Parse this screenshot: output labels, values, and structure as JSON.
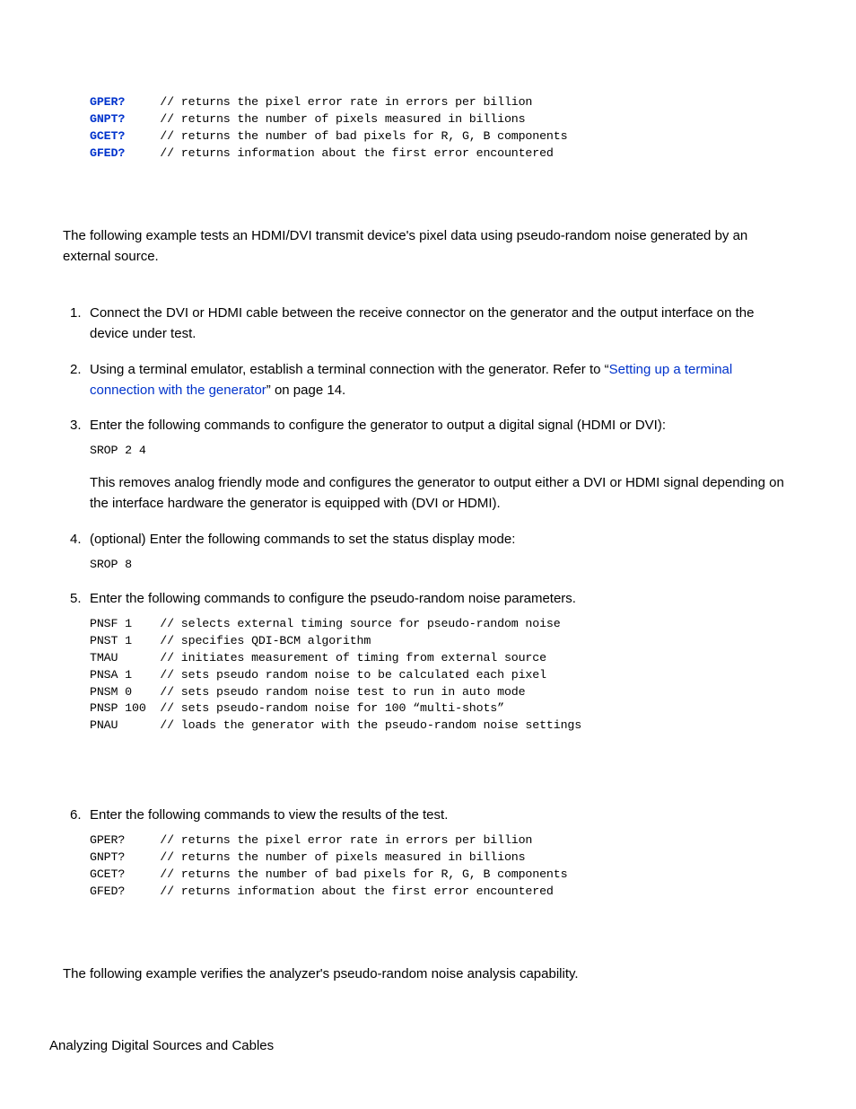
{
  "code_block_1": {
    "lines": [
      {
        "cmd": "GPER?",
        "arg": "",
        "pad": "     ",
        "comment": "// returns the pixel error rate in errors per billion"
      },
      {
        "cmd": "GNPT?",
        "arg": "",
        "pad": "     ",
        "comment": "// returns the number of pixels measured in billions"
      },
      {
        "cmd": "GCET?",
        "arg": "",
        "pad": "     ",
        "comment": "// returns the number of bad pixels for R, G, B components"
      },
      {
        "cmd": "GFED?",
        "arg": "",
        "pad": "     ",
        "comment": "// returns information about the first error encountered"
      }
    ]
  },
  "para_1": "The following example tests an HDMI/DVI transmit device's pixel data using pseudo-random noise generated by an external source.",
  "list_items": {
    "1": {
      "text": "Connect the DVI or HDMI cable between the receive connector on the generator and the output interface on the device under test."
    },
    "2": {
      "text_before": "Using a terminal emulator, establish a terminal connection with the generator. Refer to “",
      "link": "Setting up a terminal connection with the generator",
      "text_after": "” on page 14."
    },
    "3": {
      "text": "Enter the following commands to configure the generator to output a digital signal (HDMI or DVI):",
      "code": {
        "cmd": "SROP",
        "arg": " 2 4"
      },
      "after_text": "This removes analog friendly mode and configures the generator to output either a DVI or HDMI signal depending on the interface hardware the generator is equipped with (DVI or HDMI)."
    },
    "4": {
      "text": "(optional) Enter the following commands to set the status display mode:",
      "code_plain": "SROP 8"
    },
    "5": {
      "text": "Enter the following commands to configure the pseudo-random noise parameters.",
      "code_lines": [
        {
          "cmd": "PNSF",
          "arg": " 1",
          "pad": "    ",
          "comment": "// selects external timing source for pseudo-random noise"
        },
        {
          "cmd": "PNST",
          "arg": " 1",
          "pad": "    ",
          "comment": "// specifies QDI-BCM algorithm"
        },
        {
          "cmd": "TMAU",
          "arg": "",
          "pad": "      ",
          "comment": "// initiates measurement of timing from external source"
        },
        {
          "cmd": "PNSA",
          "arg": " 1",
          "pad": "    ",
          "comment": "// sets pseudo random noise to be calculated each pixel"
        },
        {
          "cmd": "PNSM",
          "arg": " 0",
          "pad": "    ",
          "comment": "// sets pseudo random noise test to run in auto mode"
        },
        {
          "cmd": "PNSP",
          "arg": " 100",
          "pad": "  ",
          "comment": "// sets pseudo-random noise for 100 “multi-shots”"
        },
        {
          "cmd": "PNAU",
          "arg": "",
          "pad": "      ",
          "comment": "// loads the generator with the pseudo-random noise settings"
        }
      ]
    },
    "6": {
      "text": "Enter the following commands to view the results of the test.",
      "code_lines": [
        {
          "cmd": "GPER?",
          "arg": "",
          "pad": "     ",
          "comment": "// returns the pixel error rate in errors per billion"
        },
        {
          "cmd": "GNPT?",
          "arg": "",
          "pad": "     ",
          "comment": "// returns the number of pixels measured in billions"
        },
        {
          "cmd": "GCET?",
          "arg": "",
          "pad": "     ",
          "comment": "// returns the number of bad pixels for R, G, B components"
        },
        {
          "cmd": "GFED?",
          "arg": "",
          "pad": "     ",
          "comment": "// returns information about the first error encountered"
        }
      ]
    }
  },
  "para_2": "The following example verifies the analyzer's pseudo-random noise analysis capability.",
  "footer": "Analyzing Digital Sources and Cables"
}
